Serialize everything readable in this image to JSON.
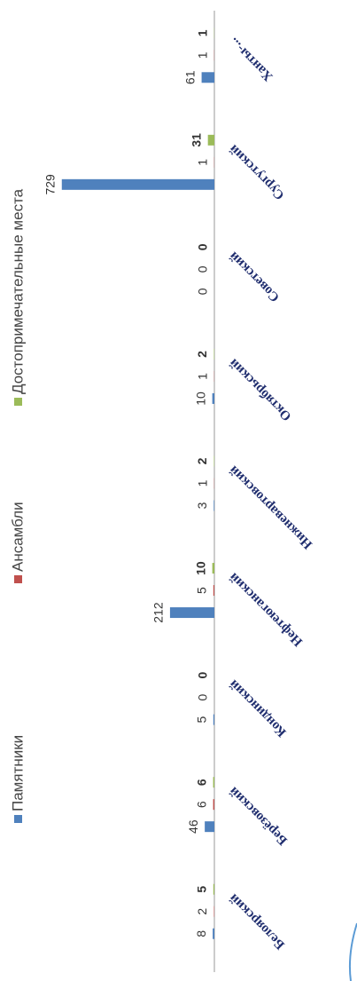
{
  "chart_data": {
    "type": "bar",
    "categories": [
      "Белоярский",
      "Берёзовский",
      "Кондинский",
      "Нефтеюганский",
      "Нижневартовский",
      "Октябрьский",
      "Советский",
      "Сургутский",
      "Ханты-..."
    ],
    "series": [
      {
        "name": "Памятники",
        "color": "#4f81bd",
        "values": [
          8,
          46,
          5,
          212,
          3,
          10,
          0,
          729,
          61
        ]
      },
      {
        "name": "Ансамбли",
        "color": "#c0504d",
        "values": [
          2,
          6,
          0,
          5,
          1,
          1,
          0,
          1,
          1
        ]
      },
      {
        "name": "Достопримечательные места",
        "color": "#9bbb59",
        "values": [
          5,
          6,
          0,
          10,
          2,
          2,
          0,
          31,
          1
        ]
      }
    ],
    "ylim": [
      0,
      800
    ],
    "legend": "top"
  }
}
